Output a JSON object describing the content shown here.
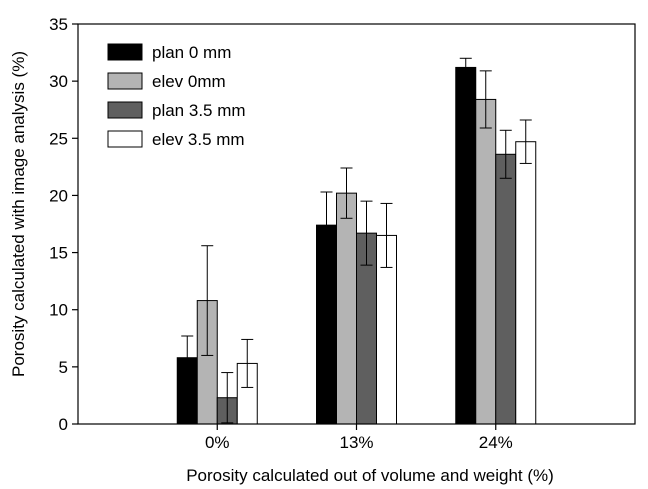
{
  "chart_data": {
    "type": "bar",
    "title": "",
    "xlabel": "Porosity calculated out of volume and weight (%)",
    "ylabel": "Porosity calculated with image analysis (%)",
    "categories": [
      "0%",
      "13%",
      "24%"
    ],
    "ylim": [
      0,
      35
    ],
    "yticks": [
      0,
      5,
      10,
      15,
      20,
      25,
      30,
      35
    ],
    "grid": false,
    "legend_position": "top-left",
    "series": [
      {
        "name": "plan 0 mm",
        "color": "#000000",
        "values": [
          5.8,
          17.4,
          31.2
        ],
        "errors": [
          1.9,
          2.9,
          0.8
        ]
      },
      {
        "name": "elev 0mm",
        "color": "#b4b4b4",
        "values": [
          10.8,
          20.2,
          28.4
        ],
        "errors": [
          4.8,
          2.2,
          2.5
        ]
      },
      {
        "name": "plan 3.5 mm",
        "color": "#5f5f5f",
        "values": [
          2.3,
          16.7,
          23.6
        ],
        "errors": [
          2.2,
          2.8,
          2.1
        ]
      },
      {
        "name": "elev 3.5 mm",
        "color": "#ffffff",
        "values": [
          5.3,
          16.5,
          24.7
        ],
        "errors": [
          2.1,
          2.8,
          1.9
        ]
      }
    ]
  }
}
